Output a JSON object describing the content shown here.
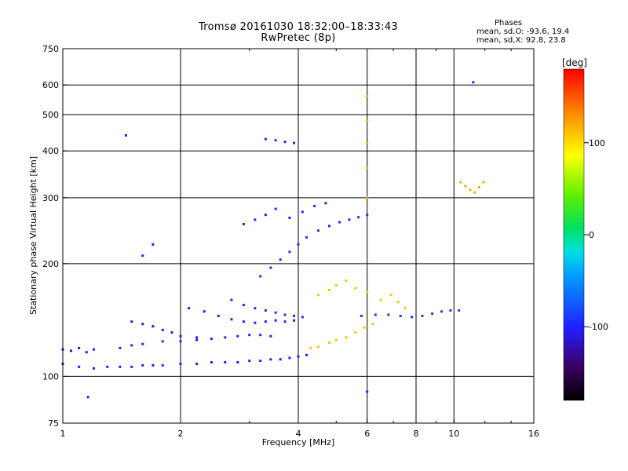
{
  "chart_data": {
    "type": "scatter",
    "title": "Tromsø 20161030 18:32:00–18:33:43",
    "subtitle": "RwPretec (8p)",
    "xlabel": "Frequency [MHz]",
    "ylabel": "Stationary phase Virtual Height [km]",
    "x_scale": "log",
    "y_scale": "log",
    "xlim": [
      1,
      16
    ],
    "ylim": [
      75,
      750
    ],
    "x_ticks": [
      "1",
      "2",
      "4",
      "6",
      "8",
      "10",
      "16"
    ],
    "y_ticks": [
      "75",
      "100",
      "200",
      "300",
      "400",
      "500",
      "600",
      "750"
    ],
    "grid": true,
    "colorbar": {
      "label": "[deg]",
      "range": [
        -180,
        180
      ],
      "ticks": [
        "100",
        "0",
        "-100"
      ]
    },
    "phase_stats": {
      "header": "Phases",
      "line_o": "mean, sd,O: -93.6, 19.4",
      "line_x": "mean, sd,X:  92.8, 23.8"
    },
    "series": [
      {
        "values": [
          [
            1.0,
            108
          ],
          [
            1.1,
            106
          ],
          [
            1.2,
            105
          ],
          [
            1.3,
            106
          ],
          [
            1.4,
            106
          ],
          [
            1.5,
            106
          ],
          [
            1.6,
            107
          ],
          [
            1.7,
            107
          ],
          [
            1.8,
            107
          ],
          [
            2.0,
            108
          ],
          [
            2.2,
            108
          ],
          [
            2.4,
            109
          ],
          [
            2.6,
            109
          ],
          [
            2.8,
            109
          ],
          [
            3.0,
            110
          ],
          [
            3.2,
            110
          ],
          [
            3.4,
            111
          ],
          [
            3.6,
            111
          ],
          [
            3.8,
            112
          ],
          [
            4.0,
            113
          ],
          [
            4.2,
            114
          ]
        ],
        "phase": -105
      },
      {
        "values": [
          [
            1.0,
            118
          ],
          [
            1.05,
            117
          ],
          [
            1.1,
            119
          ],
          [
            1.15,
            116
          ],
          [
            1.2,
            118
          ]
        ],
        "phase": -110
      },
      {
        "values": [
          [
            1.4,
            119
          ],
          [
            1.5,
            121
          ],
          [
            1.6,
            122
          ],
          [
            1.8,
            124
          ],
          [
            2.0,
            124
          ],
          [
            2.2,
            125
          ],
          [
            2.4,
            126
          ],
          [
            2.6,
            127
          ],
          [
            2.8,
            128
          ],
          [
            3.0,
            129
          ],
          [
            3.2,
            129
          ],
          [
            3.4,
            128
          ]
        ],
        "phase": -100
      },
      {
        "values": [
          [
            1.5,
            140
          ],
          [
            1.6,
            138
          ],
          [
            1.7,
            136
          ],
          [
            1.8,
            133
          ],
          [
            1.9,
            131
          ],
          [
            2.0,
            128
          ],
          [
            2.2,
            127
          ]
        ],
        "phase": -110
      },
      {
        "values": [
          [
            2.1,
            152
          ],
          [
            2.3,
            149
          ],
          [
            2.5,
            145
          ],
          [
            2.7,
            142
          ],
          [
            2.9,
            140
          ],
          [
            3.1,
            139
          ],
          [
            3.3,
            140
          ],
          [
            3.5,
            141
          ],
          [
            3.7,
            140
          ],
          [
            3.9,
            141
          ]
        ],
        "phase": -105
      },
      {
        "values": [
          [
            2.7,
            160
          ],
          [
            2.9,
            155
          ],
          [
            3.1,
            152
          ],
          [
            3.3,
            150
          ],
          [
            3.5,
            148
          ],
          [
            3.7,
            146
          ],
          [
            3.9,
            145
          ],
          [
            4.1,
            144
          ]
        ],
        "phase": -95
      },
      {
        "values": [
          [
            4.3,
            119
          ],
          [
            4.5,
            120
          ],
          [
            4.8,
            123
          ],
          [
            5.0,
            125
          ],
          [
            5.3,
            127
          ],
          [
            5.6,
            131
          ],
          [
            5.9,
            135
          ],
          [
            6.2,
            138
          ]
        ],
        "phase": 110
      },
      {
        "values": [
          [
            5.8,
            145
          ],
          [
            6.3,
            146
          ],
          [
            6.8,
            146
          ],
          [
            7.3,
            145
          ],
          [
            7.8,
            144
          ],
          [
            8.3,
            145
          ],
          [
            8.8,
            147
          ],
          [
            9.3,
            149
          ],
          [
            9.8,
            150
          ],
          [
            10.3,
            150
          ]
        ],
        "phase": -90
      },
      {
        "values": [
          [
            4.5,
            165
          ],
          [
            4.8,
            170
          ],
          [
            5.0,
            175
          ],
          [
            5.3,
            180
          ],
          [
            5.6,
            172
          ],
          [
            6.0,
            168
          ],
          [
            6.5,
            160
          ],
          [
            6.9,
            165
          ],
          [
            7.2,
            158
          ],
          [
            7.5,
            152
          ]
        ],
        "phase": 110
      },
      {
        "values": [
          [
            3.2,
            185
          ],
          [
            3.4,
            195
          ],
          [
            3.6,
            205
          ],
          [
            3.8,
            215
          ],
          [
            4.0,
            225
          ],
          [
            4.2,
            235
          ],
          [
            4.5,
            245
          ],
          [
            4.8,
            252
          ],
          [
            5.1,
            258
          ],
          [
            5.4,
            262
          ],
          [
            5.7,
            266
          ],
          [
            6.0,
            270
          ]
        ],
        "phase": -95
      },
      {
        "values": [
          [
            2.9,
            255
          ],
          [
            3.1,
            262
          ],
          [
            3.3,
            270
          ],
          [
            3.5,
            280
          ],
          [
            3.8,
            265
          ],
          [
            4.1,
            275
          ],
          [
            4.4,
            285
          ],
          [
            4.7,
            290
          ]
        ],
        "phase": -100
      },
      {
        "values": [
          [
            3.3,
            430
          ],
          [
            3.5,
            427
          ],
          [
            3.7,
            423
          ],
          [
            3.9,
            420
          ]
        ],
        "phase": -100
      },
      {
        "values": [
          [
            6.0,
            300
          ],
          [
            6.0,
            360
          ],
          [
            6.0,
            420
          ],
          [
            6.0,
            480
          ],
          [
            6.0,
            560
          ]
        ],
        "phase": 120
      },
      {
        "values": [
          [
            10.4,
            330
          ],
          [
            10.7,
            322
          ],
          [
            11.0,
            315
          ],
          [
            11.3,
            310
          ],
          [
            11.6,
            320
          ],
          [
            11.9,
            330
          ]
        ],
        "phase": 120
      },
      {
        "values": [
          [
            1.45,
            440
          ],
          [
            1.16,
            88
          ],
          [
            6.0,
            91
          ],
          [
            11.2,
            610
          ],
          [
            1.6,
            210
          ],
          [
            1.7,
            225
          ]
        ],
        "phase": -100
      }
    ]
  }
}
